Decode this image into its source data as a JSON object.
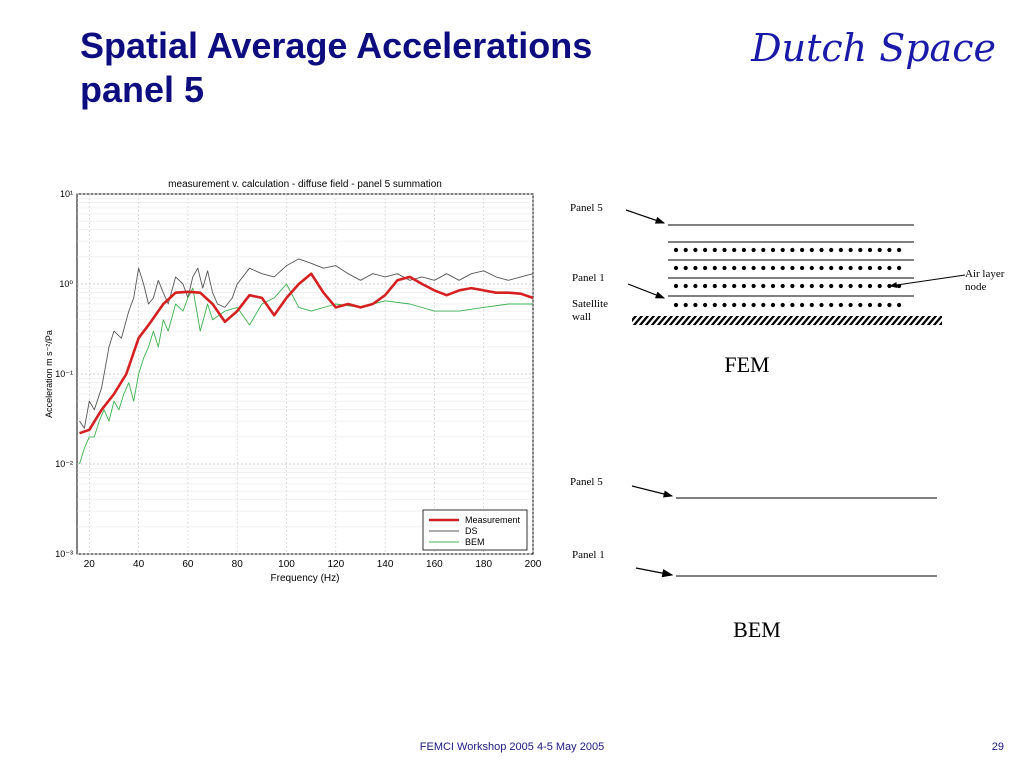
{
  "slide": {
    "title_line1": "Spatial Average Accelerations",
    "title_line2": "panel 5",
    "brand": "Dutch Space",
    "footer": "FEMCI Workshop 2005 4-5  May 2005",
    "page_number": "29"
  },
  "chart_data": {
    "type": "line",
    "title": "measurement v. calculation - diffuse field - panel 5 summation",
    "xlabel": "Frequency (Hz)",
    "ylabel": "Acceleration m s⁻²/Pa",
    "xlim": [
      15,
      200
    ],
    "ylim_log10": [
      -3,
      1
    ],
    "yscale": "log",
    "xticks": [
      20,
      40,
      60,
      80,
      100,
      120,
      140,
      160,
      180,
      200
    ],
    "yticks": [
      {
        "value": 0.001,
        "label": "10⁻³"
      },
      {
        "value": 0.01,
        "label": "10⁻²"
      },
      {
        "value": 0.1,
        "label": "10⁻¹"
      },
      {
        "value": 1,
        "label": "10⁰"
      },
      {
        "value": 10,
        "label": "10¹"
      }
    ],
    "grid": true,
    "legend_position": "bottom-right",
    "series": [
      {
        "name": "Measurement",
        "color": "#d42020",
        "x": [
          16,
          20,
          25,
          30,
          35,
          40,
          45,
          50,
          55,
          60,
          65,
          70,
          75,
          80,
          85,
          90,
          95,
          100,
          105,
          110,
          115,
          120,
          125,
          130,
          135,
          140,
          145,
          150,
          155,
          160,
          165,
          170,
          175,
          180,
          185,
          190,
          195,
          200
        ],
        "y": [
          0.022,
          0.024,
          0.04,
          0.06,
          0.1,
          0.25,
          0.38,
          0.6,
          0.8,
          0.82,
          0.8,
          0.6,
          0.38,
          0.5,
          0.75,
          0.7,
          0.45,
          0.7,
          1.0,
          1.3,
          0.8,
          0.55,
          0.6,
          0.55,
          0.6,
          0.75,
          1.1,
          1.2,
          1.0,
          0.85,
          0.75,
          0.85,
          0.9,
          0.85,
          0.8,
          0.8,
          0.78,
          0.7
        ]
      },
      {
        "name": "DS",
        "color": "#555555",
        "x": [
          16,
          18,
          20,
          22,
          25,
          28,
          30,
          33,
          36,
          38,
          40,
          42,
          44,
          46,
          48,
          50,
          52,
          55,
          58,
          60,
          62,
          64,
          66,
          68,
          70,
          72,
          75,
          78,
          80,
          85,
          90,
          95,
          100,
          105,
          110,
          115,
          120,
          125,
          130,
          135,
          140,
          145,
          150,
          155,
          160,
          165,
          170,
          175,
          180,
          185,
          190,
          195,
          200
        ],
        "y": [
          0.03,
          0.025,
          0.05,
          0.04,
          0.07,
          0.2,
          0.3,
          0.25,
          0.5,
          0.7,
          1.5,
          1.0,
          0.6,
          0.7,
          1.1,
          0.8,
          0.6,
          1.2,
          1.0,
          0.7,
          1.2,
          1.5,
          0.9,
          1.4,
          0.8,
          0.6,
          0.55,
          0.7,
          1.0,
          1.5,
          1.3,
          1.2,
          1.6,
          1.9,
          1.7,
          1.5,
          1.6,
          1.3,
          1.1,
          1.3,
          1.2,
          1.3,
          1.1,
          1.2,
          1.1,
          1.3,
          1.1,
          1.3,
          1.4,
          1.2,
          1.1,
          1.2,
          1.3
        ]
      },
      {
        "name": "BEM",
        "color": "#3cb04e",
        "x": [
          16,
          18,
          20,
          22,
          24,
          26,
          28,
          30,
          32,
          34,
          36,
          38,
          40,
          42,
          44,
          46,
          48,
          50,
          52,
          55,
          58,
          60,
          62,
          65,
          68,
          70,
          75,
          80,
          85,
          90,
          95,
          100,
          105,
          110,
          120,
          130,
          140,
          150,
          160,
          170,
          180,
          190,
          200
        ],
        "y": [
          0.01,
          0.015,
          0.02,
          0.02,
          0.03,
          0.04,
          0.03,
          0.05,
          0.04,
          0.06,
          0.08,
          0.05,
          0.1,
          0.15,
          0.2,
          0.3,
          0.2,
          0.4,
          0.3,
          0.6,
          0.5,
          0.7,
          0.9,
          0.3,
          0.6,
          0.4,
          0.5,
          0.55,
          0.35,
          0.6,
          0.7,
          1.0,
          0.55,
          0.5,
          0.6,
          0.55,
          0.65,
          0.6,
          0.5,
          0.5,
          0.55,
          0.6,
          0.6
        ]
      }
    ]
  },
  "diagram": {
    "fem": {
      "label": "FEM",
      "panel5": "Panel 5",
      "panel1": "Panel 1",
      "wall_line1": "Satellite",
      "wall_line2": "wall",
      "air_line1": "Air layer",
      "air_line2": "node"
    },
    "bem": {
      "label": "BEM",
      "panel5": "Panel 5",
      "panel1": "Panel 1"
    }
  }
}
